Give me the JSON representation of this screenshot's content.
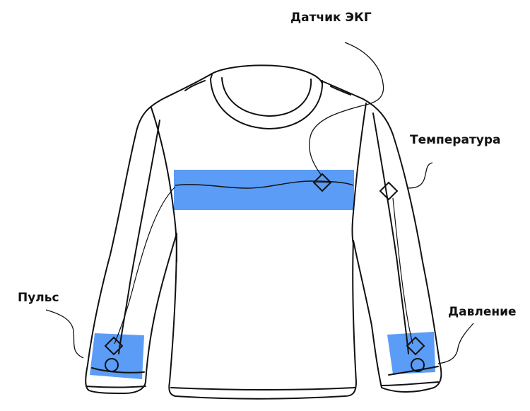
{
  "labels": {
    "ecg_sensor": "Датчик ЭКГ",
    "temperature": "Температура",
    "pulse": "Пульс",
    "pressure": "Давление"
  },
  "colors": {
    "band": "#5b9cf6",
    "outline": "#111111",
    "background": "#ffffff"
  },
  "icons": [
    "ecg-sensor-icon",
    "temperature-sensor-icon",
    "pulse-sensor-icon",
    "pressure-sensor-icon"
  ]
}
